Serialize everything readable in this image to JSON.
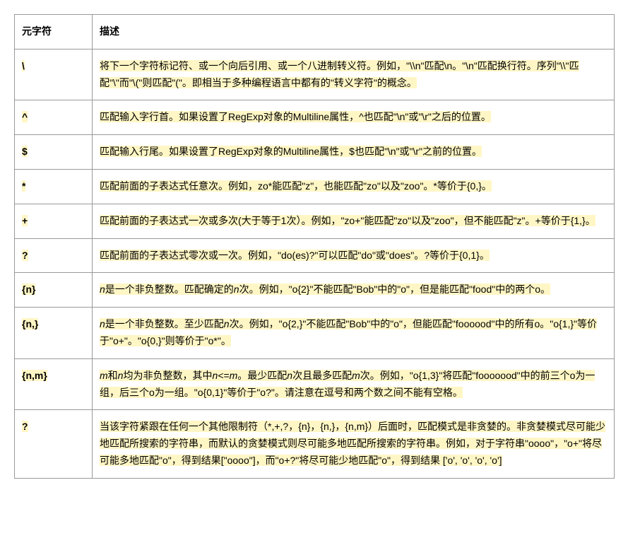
{
  "headers": {
    "col1": "元字符",
    "col2": "描述"
  },
  "rows": [
    {
      "meta": "\\",
      "desc": "将下一个字符标记符、或一个向后引用、或一个八进制转义符。例如，\"\\\\n\"匹配\\n。\"\\n\"匹配换行符。序列\"\\\\\"匹配\"\\\"而\"\\(\"则匹配\"(\"。即相当于多种编程语言中都有的\"转义字符\"的概念。"
    },
    {
      "meta": "^",
      "desc": "匹配输入字行首。如果设置了RegExp对象的Multiline属性，^也匹配\"\\n\"或\"\\r\"之后的位置。"
    },
    {
      "meta": "$",
      "desc": "匹配输入行尾。如果设置了RegExp对象的Multiline属性，$也匹配\"\\n\"或\"\\r\"之前的位置。"
    },
    {
      "meta": "*",
      "desc": "匹配前面的子表达式任意次。例如，zo*能匹配\"z\"，也能匹配\"zo\"以及\"zoo\"。*等价于{0,}。"
    },
    {
      "meta": "+",
      "desc": "匹配前面的子表达式一次或多次(大于等于1次）。例如，\"zo+\"能匹配\"zo\"以及\"zoo\"，但不能匹配\"z\"。+等价于{1,}。"
    },
    {
      "meta": "?",
      "desc": "匹配前面的子表达式零次或一次。例如，\"do(es)?\"可以匹配\"do\"或\"does\"。?等价于{0,1}。"
    },
    {
      "meta": "{n}",
      "desc_pre": "n",
      "desc_rest": "是一个非负整数。匹配确定的",
      "desc_mid_it": "n",
      "desc_tail": "次。例如，\"o{2}\"不能匹配\"Bob\"中的\"o\"，但是能匹配\"food\"中的两个o。"
    },
    {
      "meta": "{n,}",
      "desc_pre": "n",
      "desc_rest": "是一个非负整数。至少匹配",
      "desc_mid_it": "n",
      "desc_tail": "次。例如，\"o{2,}\"不能匹配\"Bob\"中的\"o\"，但能匹配\"foooood\"中的所有o。\"o{1,}\"等价于\"o+\"。\"o{0,}\"则等价于\"o*\"。"
    },
    {
      "meta": "{n,m}",
      "desc_pre": "m",
      "desc_and": "和",
      "desc_n": "n",
      "desc_rest": "均为非负整数，其中",
      "desc_ineq": "n<=m",
      "desc_tail1": "。最少匹配",
      "desc_n2": "n",
      "desc_tail2": "次且最多匹配",
      "desc_m2": "m",
      "desc_tail3": "次。例如，\"o{1,3}\"将匹配\"fooooood\"中的前三个o为一组，后三个o为一组。\"o{0,1}\"等价于\"o?\"。请注意在逗号和两个数之间不能有空格。"
    },
    {
      "meta": "?",
      "desc": "当该字符紧跟在任何一个其他限制符（*,+,?，{n}，{n,}，{n,m}）后面时，匹配模式是非贪婪的。非贪婪模式尽可能少地匹配所搜索的字符串，而默认的贪婪模式则尽可能多地匹配所搜索的字符串。例如，对于字符串\"oooo\"，\"o+\"将尽可能多地匹配\"o\"，得到结果[\"oooo\"]，而\"o+?\"将尽可能少地匹配\"o\"，得到结果 ['o', 'o', 'o', 'o']"
    }
  ],
  "colors": {
    "highlight": "#fff6c5",
    "border": "#999999",
    "text": "#000000",
    "background": "#ffffff"
  },
  "fontsize": 14
}
